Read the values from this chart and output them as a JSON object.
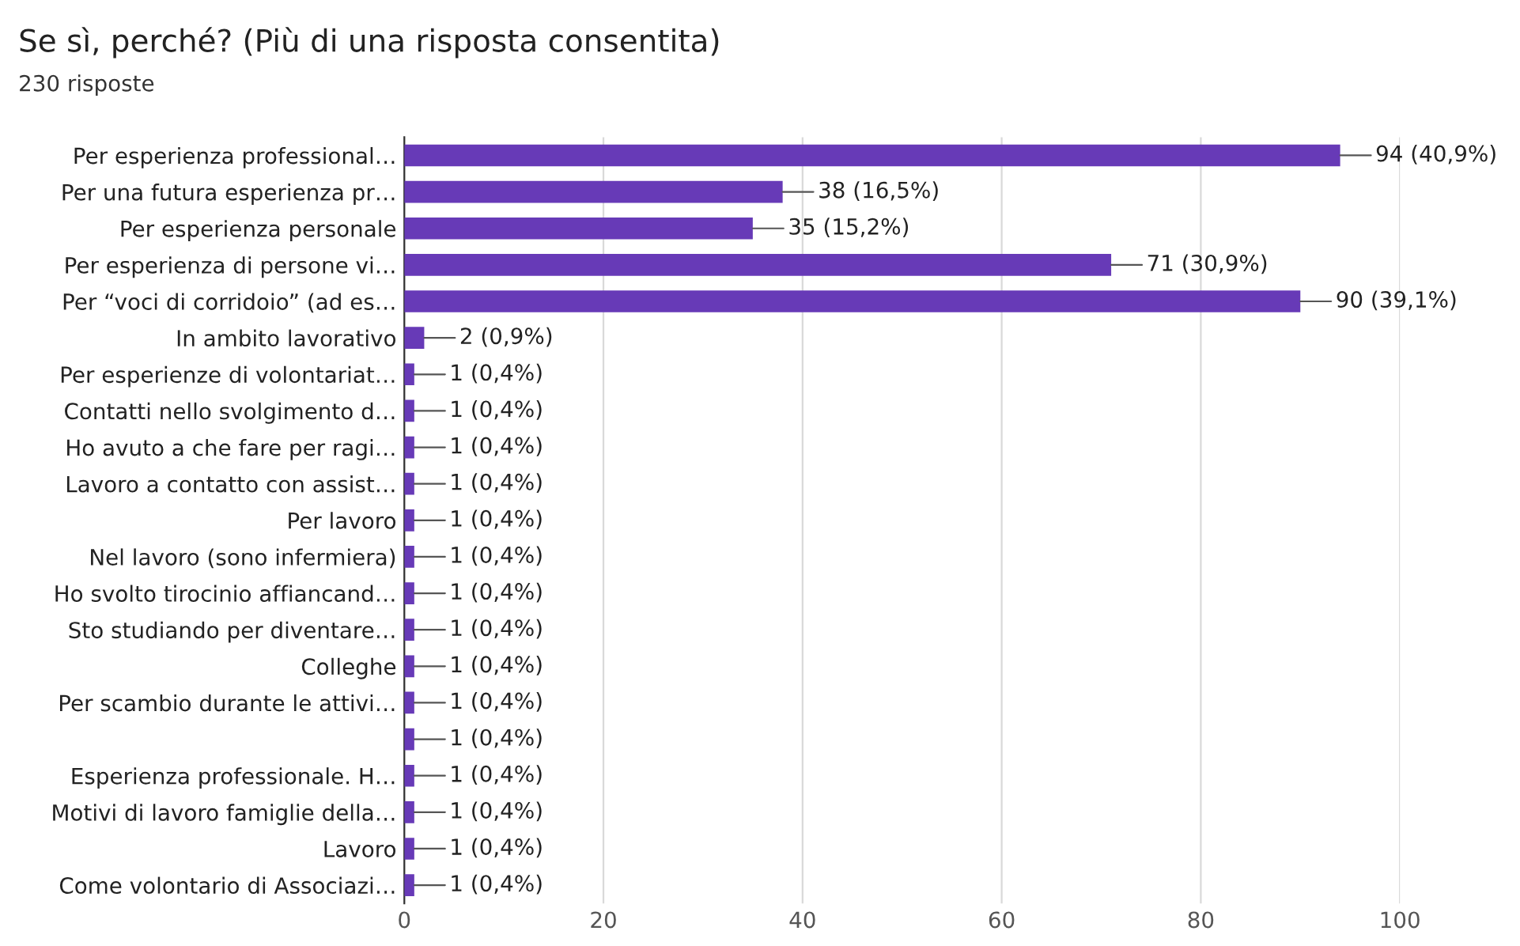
{
  "chart_data": {
    "type": "bar",
    "orientation": "horizontal",
    "title": "Se sì, perché? (Più di una risposta consentita)",
    "subtitle": "230 risposte",
    "categories": [
      "Per esperienza professional…",
      "Per una futura esperienza pr…",
      "Per esperienza personale",
      "Per esperienza di persone vi…",
      "Per “voci di corridoio” (ad es…",
      "In ambito lavorativo",
      "Per esperienze di volontariat…",
      "Contatti nello svolgimento d…",
      "Ho avuto a che fare per ragi…",
      "Lavoro a contatto con assist…",
      "Per lavoro",
      "Nel lavoro (sono infermiera)",
      "Ho svolto tirocinio affiancand…",
      "Sto studiando per diventare…",
      "Colleghe",
      "Per scambio durante le attivi…",
      null,
      "Esperienza professionale. H…",
      "Motivi di lavoro famiglie della…",
      "Lavoro",
      "Come volontario di Associazi…"
    ],
    "values": [
      94,
      38,
      35,
      71,
      90,
      2,
      1,
      1,
      1,
      1,
      1,
      1,
      1,
      1,
      1,
      1,
      1,
      1,
      1,
      1,
      1
    ],
    "value_labels": [
      "94 (40,9%)",
      "38 (16,5%)",
      "35 (15,2%)",
      "71 (30,9%)",
      "90 (39,1%)",
      "2 (0,9%)",
      "1 (0,4%)",
      "1 (0,4%)",
      "1 (0,4%)",
      "1 (0,4%)",
      "1 (0,4%)",
      "1 (0,4%)",
      "1 (0,4%)",
      "1 (0,4%)",
      "1 (0,4%)",
      "1 (0,4%)",
      "1 (0,4%)",
      "1 (0,4%)",
      "1 (0,4%)",
      "1 (0,4%)",
      "1 (0,4%)"
    ],
    "color": "#673ab7",
    "xlim": [
      0,
      100
    ],
    "xticks": [
      0,
      20,
      40,
      60,
      80,
      100
    ],
    "grid": "x"
  }
}
